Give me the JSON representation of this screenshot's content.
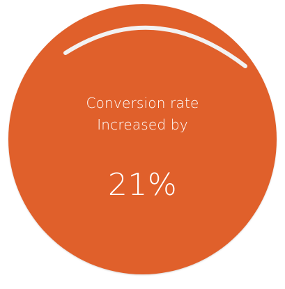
{
  "stat": {
    "line1": "Conversion rate",
    "line2": "Increased by",
    "value": "21%",
    "progress": 0.21
  },
  "colors": {
    "circle": "#e0602b",
    "text": "#ffffff",
    "arc": "#f2f2f2"
  }
}
